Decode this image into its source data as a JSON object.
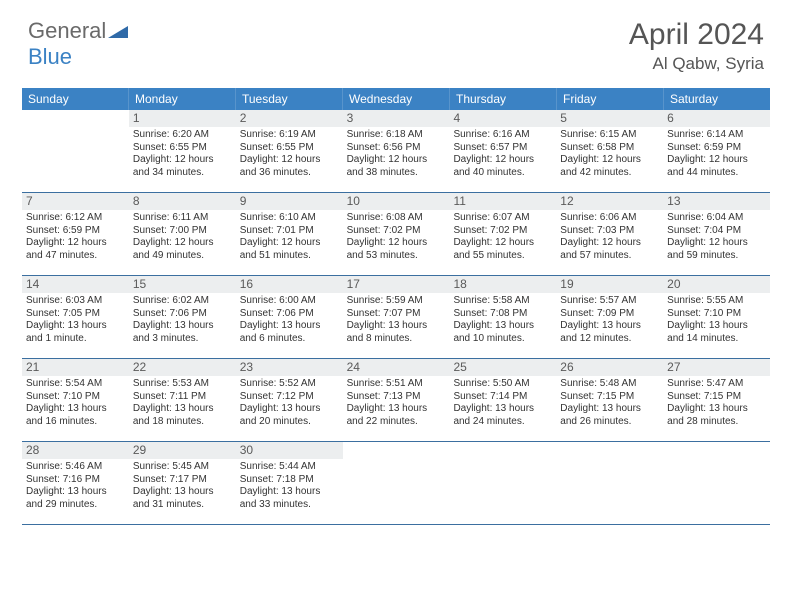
{
  "logo": {
    "part1": "General",
    "part2": "Blue"
  },
  "title": "April 2024",
  "location": "Al Qabw, Syria",
  "colors": {
    "header_bg": "#3b82c4",
    "header_fg": "#ffffff",
    "daynum_bg": "#eceeef",
    "daynum_fg": "#5a5a5a",
    "rule": "#3b6fa0",
    "text": "#333333",
    "logo_gray": "#6a6a6a",
    "logo_blue": "#3b82c4"
  },
  "dow": [
    "Sunday",
    "Monday",
    "Tuesday",
    "Wednesday",
    "Thursday",
    "Friday",
    "Saturday"
  ],
  "weeks": [
    [
      null,
      {
        "n": "1",
        "sr": "6:20 AM",
        "ss": "6:55 PM",
        "dl": "12 hours and 34 minutes."
      },
      {
        "n": "2",
        "sr": "6:19 AM",
        "ss": "6:55 PM",
        "dl": "12 hours and 36 minutes."
      },
      {
        "n": "3",
        "sr": "6:18 AM",
        "ss": "6:56 PM",
        "dl": "12 hours and 38 minutes."
      },
      {
        "n": "4",
        "sr": "6:16 AM",
        "ss": "6:57 PM",
        "dl": "12 hours and 40 minutes."
      },
      {
        "n": "5",
        "sr": "6:15 AM",
        "ss": "6:58 PM",
        "dl": "12 hours and 42 minutes."
      },
      {
        "n": "6",
        "sr": "6:14 AM",
        "ss": "6:59 PM",
        "dl": "12 hours and 44 minutes."
      }
    ],
    [
      {
        "n": "7",
        "sr": "6:12 AM",
        "ss": "6:59 PM",
        "dl": "12 hours and 47 minutes."
      },
      {
        "n": "8",
        "sr": "6:11 AM",
        "ss": "7:00 PM",
        "dl": "12 hours and 49 minutes."
      },
      {
        "n": "9",
        "sr": "6:10 AM",
        "ss": "7:01 PM",
        "dl": "12 hours and 51 minutes."
      },
      {
        "n": "10",
        "sr": "6:08 AM",
        "ss": "7:02 PM",
        "dl": "12 hours and 53 minutes."
      },
      {
        "n": "11",
        "sr": "6:07 AM",
        "ss": "7:02 PM",
        "dl": "12 hours and 55 minutes."
      },
      {
        "n": "12",
        "sr": "6:06 AM",
        "ss": "7:03 PM",
        "dl": "12 hours and 57 minutes."
      },
      {
        "n": "13",
        "sr": "6:04 AM",
        "ss": "7:04 PM",
        "dl": "12 hours and 59 minutes."
      }
    ],
    [
      {
        "n": "14",
        "sr": "6:03 AM",
        "ss": "7:05 PM",
        "dl": "13 hours and 1 minute."
      },
      {
        "n": "15",
        "sr": "6:02 AM",
        "ss": "7:06 PM",
        "dl": "13 hours and 3 minutes."
      },
      {
        "n": "16",
        "sr": "6:00 AM",
        "ss": "7:06 PM",
        "dl": "13 hours and 6 minutes."
      },
      {
        "n": "17",
        "sr": "5:59 AM",
        "ss": "7:07 PM",
        "dl": "13 hours and 8 minutes."
      },
      {
        "n": "18",
        "sr": "5:58 AM",
        "ss": "7:08 PM",
        "dl": "13 hours and 10 minutes."
      },
      {
        "n": "19",
        "sr": "5:57 AM",
        "ss": "7:09 PM",
        "dl": "13 hours and 12 minutes."
      },
      {
        "n": "20",
        "sr": "5:55 AM",
        "ss": "7:10 PM",
        "dl": "13 hours and 14 minutes."
      }
    ],
    [
      {
        "n": "21",
        "sr": "5:54 AM",
        "ss": "7:10 PM",
        "dl": "13 hours and 16 minutes."
      },
      {
        "n": "22",
        "sr": "5:53 AM",
        "ss": "7:11 PM",
        "dl": "13 hours and 18 minutes."
      },
      {
        "n": "23",
        "sr": "5:52 AM",
        "ss": "7:12 PM",
        "dl": "13 hours and 20 minutes."
      },
      {
        "n": "24",
        "sr": "5:51 AM",
        "ss": "7:13 PM",
        "dl": "13 hours and 22 minutes."
      },
      {
        "n": "25",
        "sr": "5:50 AM",
        "ss": "7:14 PM",
        "dl": "13 hours and 24 minutes."
      },
      {
        "n": "26",
        "sr": "5:48 AM",
        "ss": "7:15 PM",
        "dl": "13 hours and 26 minutes."
      },
      {
        "n": "27",
        "sr": "5:47 AM",
        "ss": "7:15 PM",
        "dl": "13 hours and 28 minutes."
      }
    ],
    [
      {
        "n": "28",
        "sr": "5:46 AM",
        "ss": "7:16 PM",
        "dl": "13 hours and 29 minutes."
      },
      {
        "n": "29",
        "sr": "5:45 AM",
        "ss": "7:17 PM",
        "dl": "13 hours and 31 minutes."
      },
      {
        "n": "30",
        "sr": "5:44 AM",
        "ss": "7:18 PM",
        "dl": "13 hours and 33 minutes."
      },
      null,
      null,
      null,
      null
    ]
  ]
}
